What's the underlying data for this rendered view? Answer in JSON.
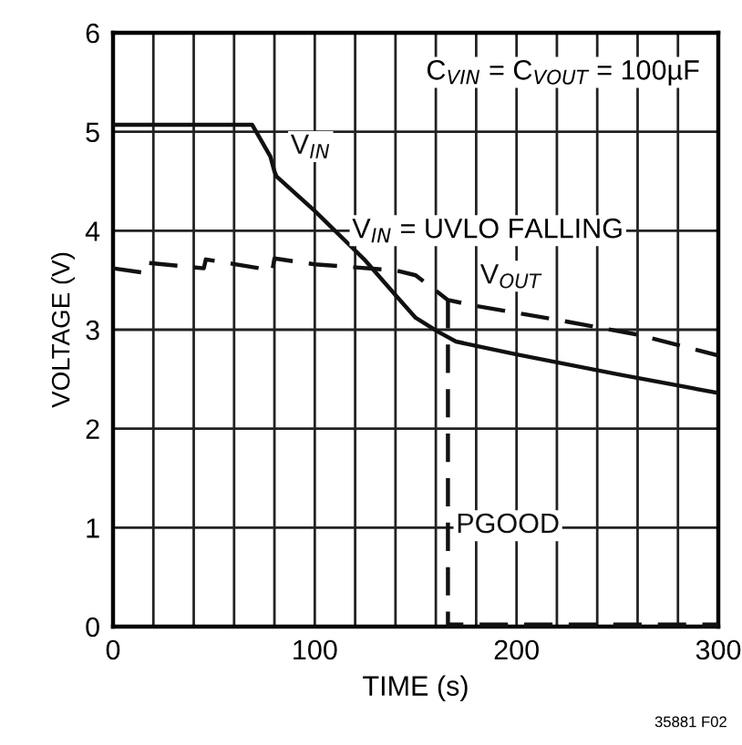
{
  "chart_data": {
    "type": "line",
    "xlabel": "TIME (s)",
    "ylabel": "VOLTAGE (V)",
    "xlim": [
      0,
      300
    ],
    "ylim": [
      0,
      6
    ],
    "xticks": [
      0,
      {
        "value": 20,
        "label": null
      },
      {
        "value": 40,
        "label": null
      },
      {
        "value": 60,
        "label": null
      },
      {
        "value": 80,
        "label": null
      },
      100,
      {
        "value": 120,
        "label": null
      },
      {
        "value": 140,
        "label": null
      },
      {
        "value": 160,
        "label": null
      },
      {
        "value": 180,
        "label": null
      },
      200,
      {
        "value": 220,
        "label": null
      },
      {
        "value": 240,
        "label": null
      },
      {
        "value": 260,
        "label": null
      },
      {
        "value": 280,
        "label": null
      },
      300
    ],
    "yticks": [
      0,
      1,
      2,
      3,
      4,
      5,
      6
    ],
    "grid": true,
    "legend": false,
    "series": [
      {
        "name": "V$_{IN}$",
        "color": "#111111",
        "line_style": "solid",
        "x": [
          0,
          69,
          78,
          80,
          81,
          100,
          125,
          140,
          150,
          161,
          170,
          200,
          250,
          300
        ],
        "values": [
          5.07,
          5.07,
          4.75,
          4.6,
          4.55,
          4.2,
          3.7,
          3.35,
          3.12,
          2.98,
          2.88,
          2.75,
          2.55,
          2.36
        ]
      },
      {
        "name": "V$_{OUT}$",
        "color": "#111111",
        "line_style": "dashed",
        "x": [
          0,
          14,
          15,
          45,
          46,
          79,
          80,
          100,
          140,
          150,
          166,
          180,
          220,
          260,
          300
        ],
        "values": [
          3.62,
          3.58,
          3.68,
          3.62,
          3.71,
          3.6,
          3.72,
          3.66,
          3.6,
          3.55,
          3.3,
          3.24,
          3.1,
          2.95,
          2.74
        ]
      },
      {
        "name": "PGOOD",
        "color": "#111111",
        "line_style": "dashed",
        "x": [
          166,
          166,
          170,
          300
        ],
        "values": [
          3.3,
          0.02,
          0.02,
          0.02
        ]
      }
    ],
    "annotations": [
      "C$_{VIN}$ = C$_{VOUT}$ = 100µF",
      "V$_{IN}$ = UVLO FALLING",
      "35881 F02"
    ]
  }
}
